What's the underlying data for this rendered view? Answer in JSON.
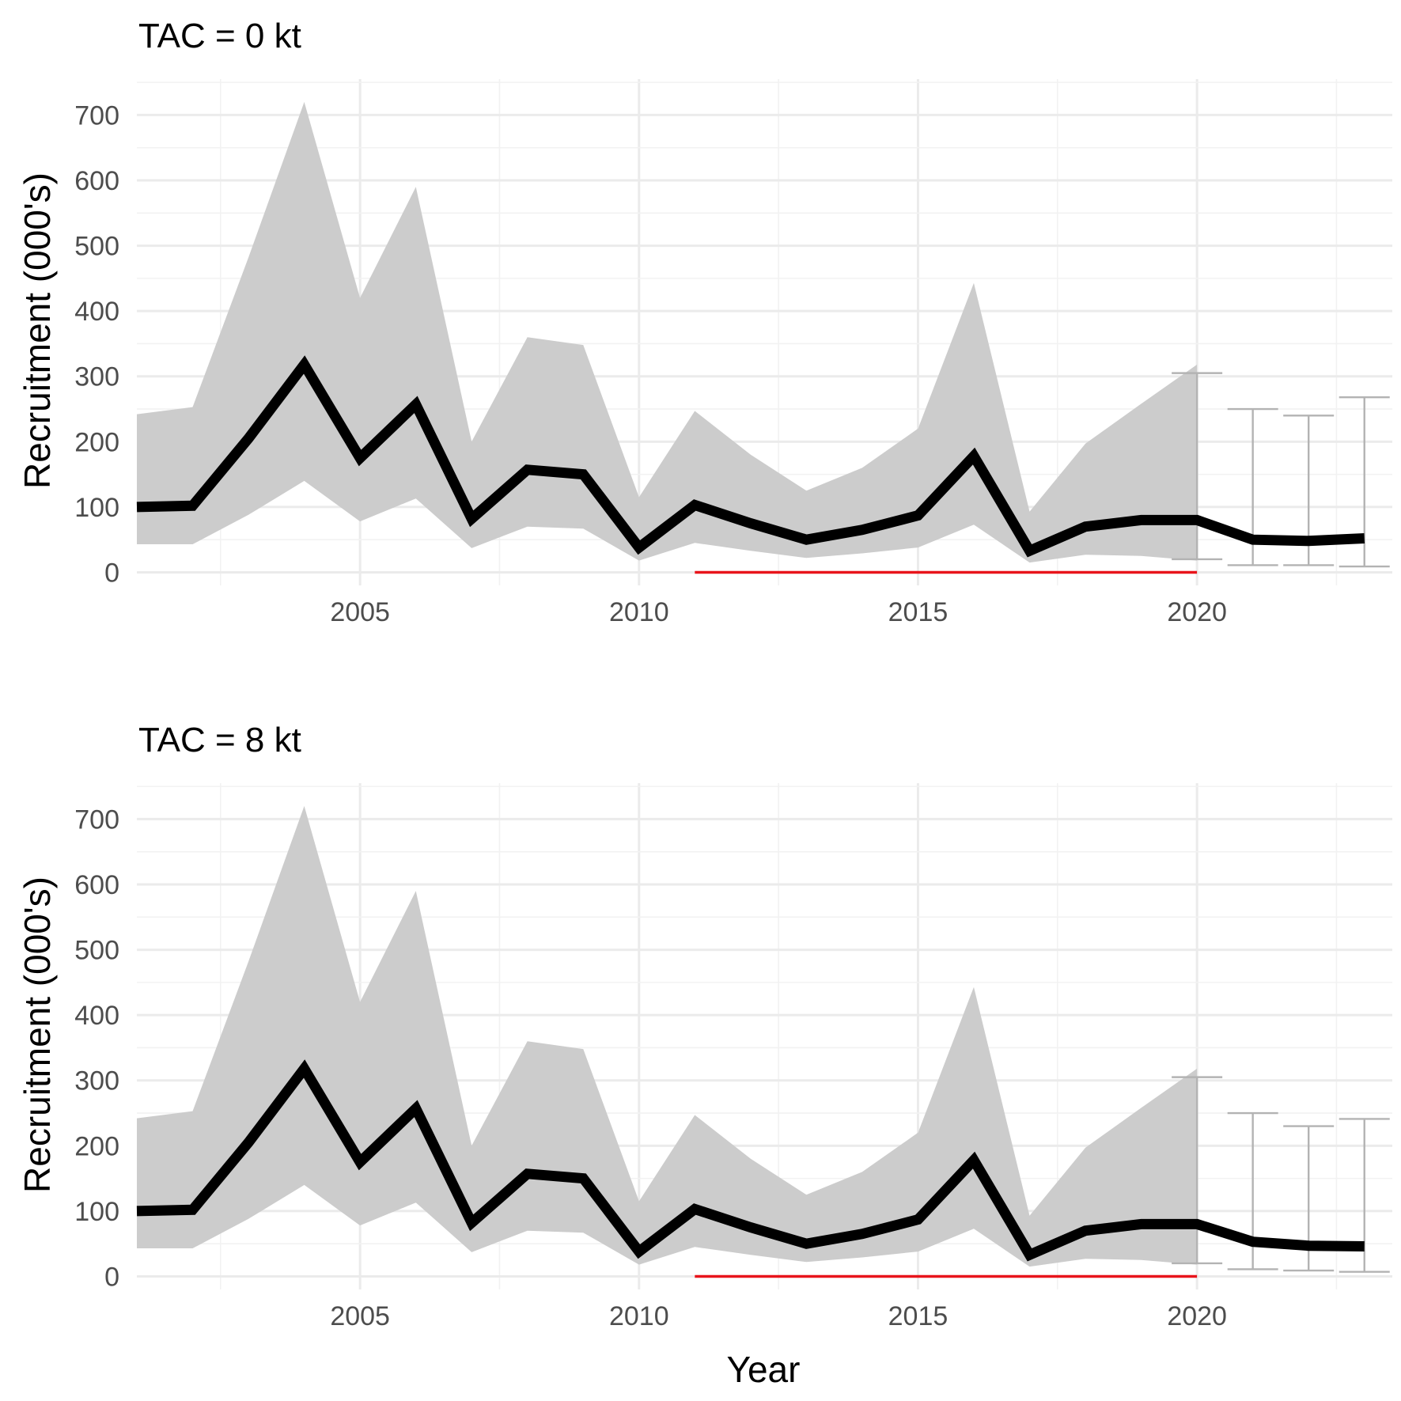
{
  "chart_data": [
    {
      "type": "line",
      "title": "TAC = 0 kt",
      "xlabel": "Year",
      "ylabel": "Recruitment (000's)",
      "xlim": [
        2001,
        2023.5
      ],
      "ylim": [
        -20,
        755
      ],
      "x_ticks": [
        2005,
        2010,
        2015,
        2020
      ],
      "y_ticks": [
        0,
        100,
        200,
        300,
        400,
        500,
        600,
        700
      ],
      "x_tick_labels": [
        "2005",
        "2010",
        "2015",
        "2020"
      ],
      "y_tick_labels": [
        "0",
        "100",
        "200",
        "300",
        "400",
        "500",
        "600",
        "700"
      ],
      "grid": true,
      "historical": {
        "x": [
          2001,
          2002,
          2003,
          2004,
          2005,
          2006,
          2007,
          2008,
          2009,
          2010,
          2011,
          2012,
          2013,
          2014,
          2015,
          2016,
          2017,
          2018,
          2019,
          2020
        ],
        "median": [
          100,
          102,
          205,
          318,
          175,
          257,
          82,
          157,
          150,
          38,
          103,
          75,
          50,
          65,
          87,
          178,
          33,
          70,
          80,
          80
        ],
        "lower": [
          43,
          43,
          88,
          140,
          78,
          113,
          37,
          70,
          67,
          18,
          45,
          33,
          22,
          29,
          38,
          73,
          15,
          27,
          25,
          18
        ],
        "upper": [
          242,
          253,
          482,
          720,
          420,
          590,
          200,
          360,
          348,
          115,
          247,
          180,
          125,
          160,
          220,
          443,
          93,
          197,
          258,
          318
        ]
      },
      "projection": {
        "x": [
          2020,
          2021,
          2022,
          2023
        ],
        "median": [
          80,
          50,
          48,
          52
        ],
        "lower": [
          20,
          11,
          11,
          9
        ],
        "upper": [
          305,
          250,
          240,
          268
        ]
      },
      "reference_line": {
        "x_start": 2011,
        "x_end": 2020,
        "y": 0,
        "color": "#e8141b"
      }
    },
    {
      "type": "line",
      "title": "TAC = 8 kt",
      "xlabel": "Year",
      "ylabel": "Recruitment (000's)",
      "xlim": [
        2001,
        2023.5
      ],
      "ylim": [
        -20,
        755
      ],
      "x_ticks": [
        2005,
        2010,
        2015,
        2020
      ],
      "y_ticks": [
        0,
        100,
        200,
        300,
        400,
        500,
        600,
        700
      ],
      "x_tick_labels": [
        "2005",
        "2010",
        "2015",
        "2020"
      ],
      "y_tick_labels": [
        "0",
        "100",
        "200",
        "300",
        "400",
        "500",
        "600",
        "700"
      ],
      "grid": true,
      "historical": {
        "x": [
          2001,
          2002,
          2003,
          2004,
          2005,
          2006,
          2007,
          2008,
          2009,
          2010,
          2011,
          2012,
          2013,
          2014,
          2015,
          2016,
          2017,
          2018,
          2019,
          2020
        ],
        "median": [
          100,
          102,
          205,
          318,
          175,
          257,
          82,
          157,
          150,
          38,
          103,
          75,
          50,
          65,
          87,
          178,
          33,
          70,
          80,
          80
        ],
        "lower": [
          43,
          43,
          88,
          140,
          78,
          113,
          37,
          70,
          67,
          18,
          45,
          33,
          22,
          29,
          38,
          73,
          15,
          27,
          25,
          18
        ],
        "upper": [
          242,
          253,
          482,
          720,
          420,
          590,
          200,
          360,
          348,
          115,
          247,
          180,
          125,
          160,
          220,
          443,
          93,
          197,
          258,
          318
        ]
      },
      "projection": {
        "x": [
          2020,
          2021,
          2022,
          2023
        ],
        "median": [
          80,
          53,
          47,
          46
        ],
        "lower": [
          20,
          11,
          9,
          7
        ],
        "upper": [
          305,
          250,
          230,
          241
        ]
      },
      "reference_line": {
        "x_start": 2011,
        "x_end": 2020,
        "y": 0,
        "color": "#e8141b"
      }
    }
  ]
}
